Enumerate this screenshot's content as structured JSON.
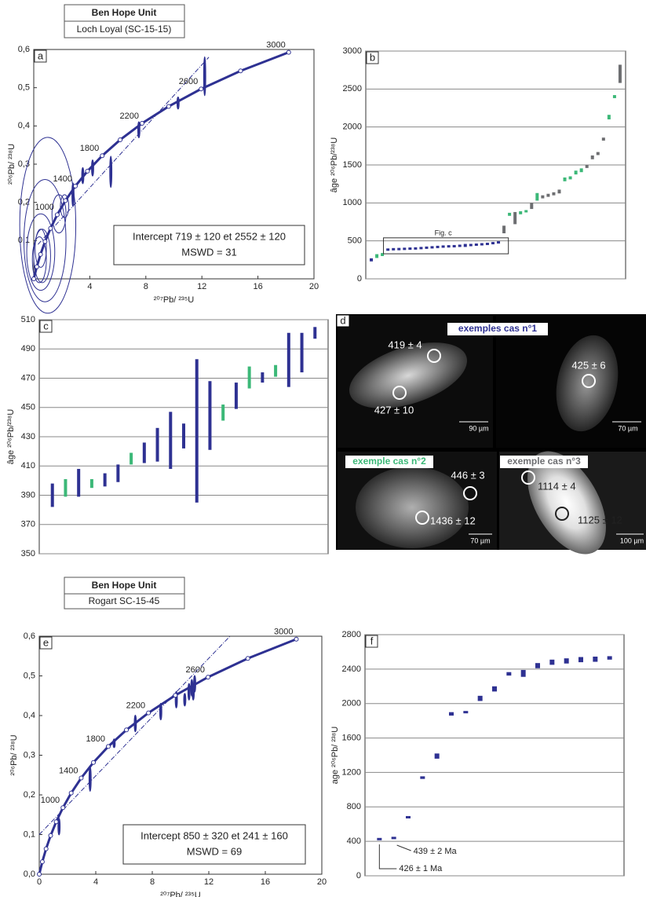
{
  "headers": [
    {
      "title": "Ben Hope Unit",
      "subtitle": "Loch Loyal (SC-15-15)"
    },
    {
      "title": "Ben Hope Unit",
      "subtitle": "Rogart SC-15-45"
    }
  ],
  "panel_d": {
    "label": "d",
    "images": [
      {
        "caption": "exemples cas n°1",
        "spots": [
          "419 ± 4",
          "427 ± 10"
        ],
        "scale": "90 µm"
      },
      {
        "spots": [
          "425 ± 6"
        ],
        "scale": "70 µm"
      },
      {
        "caption": "exemple cas n°2",
        "spots": [
          "446 ± 3",
          "1436 ± 12"
        ],
        "scale": "70 µm"
      },
      {
        "caption": "exemple cas n°3",
        "spots": [
          "1114 ± 4",
          "1125 ± 12"
        ],
        "scale": "100 µm"
      }
    ]
  },
  "chart_data": [
    {
      "type": "concordia",
      "label": "a",
      "x_label": "²⁰⁷Pb/ ²³⁵U",
      "y_label": "²⁰⁶Pb/ ²³⁸U",
      "color": "#2e3192",
      "xlim": [
        0,
        20
      ],
      "ylim": [
        0,
        0.6
      ],
      "xticks": [
        4,
        8,
        12,
        16,
        20
      ],
      "yticks": [
        {
          "value": 0.1,
          "label": "0,1"
        },
        {
          "value": 0.2,
          "label": "0,2"
        },
        {
          "value": 0.3,
          "label": "0,3"
        },
        {
          "value": 0.4,
          "label": "0,4"
        },
        {
          "value": 0.5,
          "label": "0,5"
        },
        {
          "value": 0.6,
          "label": "0,6"
        }
      ],
      "concordia": {
        "x": [
          0,
          0.2177,
          0.4826,
          0.8056,
          1.1988,
          1.6774,
          2.2603,
          2.9701,
          3.8343,
          4.8868,
          6.1689,
          7.7298,
          9.631,
          11.945,
          14.763,
          18.195
        ],
        "y": [
          0,
          0.0315,
          0.064,
          0.0975,
          0.1321,
          0.1678,
          0.2046,
          0.2426,
          0.2817,
          0.3221,
          0.3638,
          0.4068,
          0.4511,
          0.4968,
          0.544,
          0.5926
        ],
        "age_labels": [
          null,
          null,
          null,
          null,
          null,
          1000,
          null,
          1400,
          null,
          1800,
          null,
          2200,
          null,
          2600,
          null,
          3000
        ]
      },
      "points": {
        "x": [
          1.0,
          0.8,
          0.5,
          0.6,
          0.4,
          0.5,
          1.8,
          2.2,
          2.8,
          3.5,
          4.2,
          5.5,
          7.5,
          10.3,
          12.2
        ],
        "y": [
          0.14,
          0.1,
          0.07,
          0.06,
          0.05,
          0.08,
          0.17,
          0.19,
          0.22,
          0.27,
          0.29,
          0.28,
          0.39,
          0.46,
          0.53
        ],
        "x_err": [
          2.0,
          1.5,
          1.0,
          0.6,
          0.5,
          0.4,
          0.5,
          0.3,
          0.05,
          0.05,
          0.05,
          0.05,
          0.05,
          0.05,
          0.05
        ],
        "y_err": [
          0.23,
          0.16,
          0.1,
          0.07,
          0.06,
          0.05,
          0.05,
          0.03,
          0.03,
          0.02,
          0.02,
          0.04,
          0.02,
          0.015,
          0.05
        ]
      },
      "discordia": {
        "x": [
          0.3,
          12.5
        ],
        "y": [
          0.09,
          0.58
        ]
      },
      "annotations": [
        "Intercept 719 ± 120 et 2552 ± 120",
        "MSWD = 31"
      ]
    },
    {
      "type": "errorbar",
      "label": "b",
      "y_label": "âge ²⁰⁶Pb/²³⁸U",
      "grid": true,
      "xlim": [
        0,
        47
      ],
      "ylim": [
        0,
        3000
      ],
      "yticks": [
        0,
        500,
        1000,
        1500,
        2000,
        2500,
        3000
      ],
      "annotations": [
        "Fig. c"
      ],
      "series": [
        {
          "color": "#2e3192",
          "x": [
            1,
            4,
            5,
            6,
            7,
            8,
            9,
            10,
            11,
            12,
            13,
            14,
            15,
            16,
            17,
            18,
            19,
            20,
            21,
            22,
            23,
            24
          ],
          "values": [
            250,
            385,
            390,
            392,
            395,
            398,
            400,
            405,
            410,
            415,
            420,
            425,
            428,
            430,
            435,
            440,
            445,
            450,
            455,
            460,
            470,
            480
          ],
          "errors": [
            20,
            8,
            6,
            8,
            5,
            6,
            8,
            6,
            10,
            5,
            6,
            15,
            8,
            5,
            6,
            20,
            8,
            6,
            8,
            6,
            8,
            10
          ]
        },
        {
          "color": "#3cb878",
          "x": [
            2,
            3,
            26,
            28,
            29,
            31,
            36,
            37,
            38,
            39,
            44,
            45
          ],
          "values": [
            300,
            320,
            850,
            870,
            890,
            1080,
            1310,
            1330,
            1400,
            1430,
            2130,
            2400
          ],
          "errors": [
            25,
            20,
            20,
            20,
            15,
            50,
            25,
            20,
            25,
            25,
            30,
            20
          ]
        },
        {
          "color": "#6d6e71",
          "x": [
            25,
            27,
            30,
            32,
            33,
            34,
            35,
            40,
            41,
            42,
            43,
            46
          ],
          "values": [
            650,
            800,
            960,
            1080,
            1100,
            1120,
            1150,
            1480,
            1600,
            1650,
            1840,
            2700
          ],
          "errors": [
            50,
            80,
            40,
            20,
            20,
            20,
            25,
            20,
            25,
            20,
            20,
            120
          ]
        }
      ]
    },
    {
      "type": "errorbar",
      "label": "c",
      "y_label": "âge ²⁰⁶Pb/²³⁸U",
      "grid": true,
      "xlim": [
        0,
        22
      ],
      "ylim": [
        350,
        510
      ],
      "yticks": [
        350,
        370,
        390,
        410,
        430,
        450,
        470,
        490,
        510
      ],
      "series": [
        {
          "color": "#2e3192",
          "x": [
            1,
            3,
            5,
            6,
            8,
            9,
            10,
            11,
            12,
            13,
            15,
            17,
            19,
            20,
            21
          ],
          "values": [
            390,
            398.5,
            400.5,
            405,
            419,
            424.5,
            427.5,
            430.5,
            434,
            444.5,
            458,
            470.5,
            482.5,
            487.5,
            501
          ],
          "errors": [
            8,
            9.5,
            4.5,
            6,
            7,
            11.5,
            19.5,
            8.5,
            49,
            23.5,
            9,
            3.5,
            18.5,
            13.5,
            4
          ]
        },
        {
          "color": "#3cb878",
          "x": [
            2,
            4,
            7,
            14,
            16,
            18
          ],
          "values": [
            395,
            398,
            415,
            446.5,
            470.5,
            475
          ],
          "errors": [
            6,
            3,
            4,
            5.5,
            7.5,
            4
          ]
        }
      ]
    },
    {
      "type": "concordia",
      "label": "e",
      "x_label": "²⁰⁷Pb/ ²³⁵U",
      "y_label": "²⁰⁶Pb/ ²³⁸U",
      "color": "#2e3192",
      "xlim": [
        0,
        20
      ],
      "ylim": [
        0,
        0.6
      ],
      "xticks": [
        0,
        4,
        8,
        12,
        16,
        20
      ],
      "yticks": [
        {
          "value": 0,
          "label": "0,0"
        },
        {
          "value": 0.1,
          "label": "0,1"
        },
        {
          "value": 0.2,
          "label": "0,2"
        },
        {
          "value": 0.3,
          "label": "0,3"
        },
        {
          "value": 0.4,
          "label": "0,4"
        },
        {
          "value": 0.5,
          "label": "0,5"
        },
        {
          "value": 0.6,
          "label": "0,6"
        }
      ],
      "concordia": {
        "x": [
          0,
          0.2177,
          0.4826,
          0.8056,
          1.1988,
          1.6774,
          2.2603,
          2.9701,
          3.8343,
          4.8868,
          6.1689,
          7.7298,
          9.631,
          11.945,
          14.763,
          18.195
        ],
        "y": [
          0,
          0.0315,
          0.064,
          0.0975,
          0.1321,
          0.1678,
          0.2046,
          0.2426,
          0.2817,
          0.3221,
          0.3638,
          0.4068,
          0.4511,
          0.4968,
          0.544,
          0.5926
        ],
        "age_labels": [
          null,
          null,
          null,
          null,
          null,
          1000,
          null,
          1400,
          null,
          1800,
          null,
          2200,
          null,
          2600,
          null,
          3000
        ]
      },
      "points": {
        "x": [
          1.4,
          3.6,
          5.3,
          6.8,
          8.6,
          9.7,
          10.3,
          10.6,
          10.8,
          11.0,
          10.9
        ],
        "y": [
          0.12,
          0.24,
          0.33,
          0.38,
          0.41,
          0.44,
          0.44,
          0.46,
          0.47,
          0.48,
          0.46
        ],
        "x_err": [
          0.05,
          0.05,
          0.05,
          0.05,
          0.05,
          0.05,
          0.05,
          0.05,
          0.05,
          0.05,
          0.05
        ],
        "y_err": [
          0.02,
          0.03,
          0.01,
          0.02,
          0.02,
          0.02,
          0.015,
          0.02,
          0.02,
          0.02,
          0.02
        ]
      },
      "discordia": {
        "x": [
          0,
          13.5
        ],
        "y": [
          0.1,
          0.6
        ]
      },
      "annotations": [
        "Intercept 850 ± 320 et 241 ± 160",
        "MSWD = 69"
      ]
    },
    {
      "type": "errorbar",
      "label": "f",
      "y_label": "age ²⁰⁶Pb/ ²³⁸U",
      "grid": true,
      "xlim": [
        0,
        18
      ],
      "ylim": [
        0,
        2800
      ],
      "yticks": [
        0,
        400,
        800,
        1200,
        1600,
        2000,
        2400,
        2800
      ],
      "annotations": [
        "439 ± 2 Ma",
        "426 ± 1 Ma"
      ],
      "series": [
        {
          "color": "#2e3192",
          "x": [
            1,
            2,
            3,
            4,
            5,
            6,
            7,
            8,
            9,
            10,
            11,
            12,
            13,
            14,
            15,
            16,
            17
          ],
          "values": [
            426,
            439,
            680,
            1140,
            1390,
            1880,
            1900,
            2060,
            2170,
            2345,
            2350,
            2440,
            2480,
            2495,
            2510,
            2515,
            2530
          ],
          "errors": [
            1,
            2,
            10,
            15,
            30,
            20,
            10,
            30,
            30,
            20,
            40,
            30,
            30,
            30,
            30,
            30,
            20
          ]
        }
      ]
    }
  ]
}
